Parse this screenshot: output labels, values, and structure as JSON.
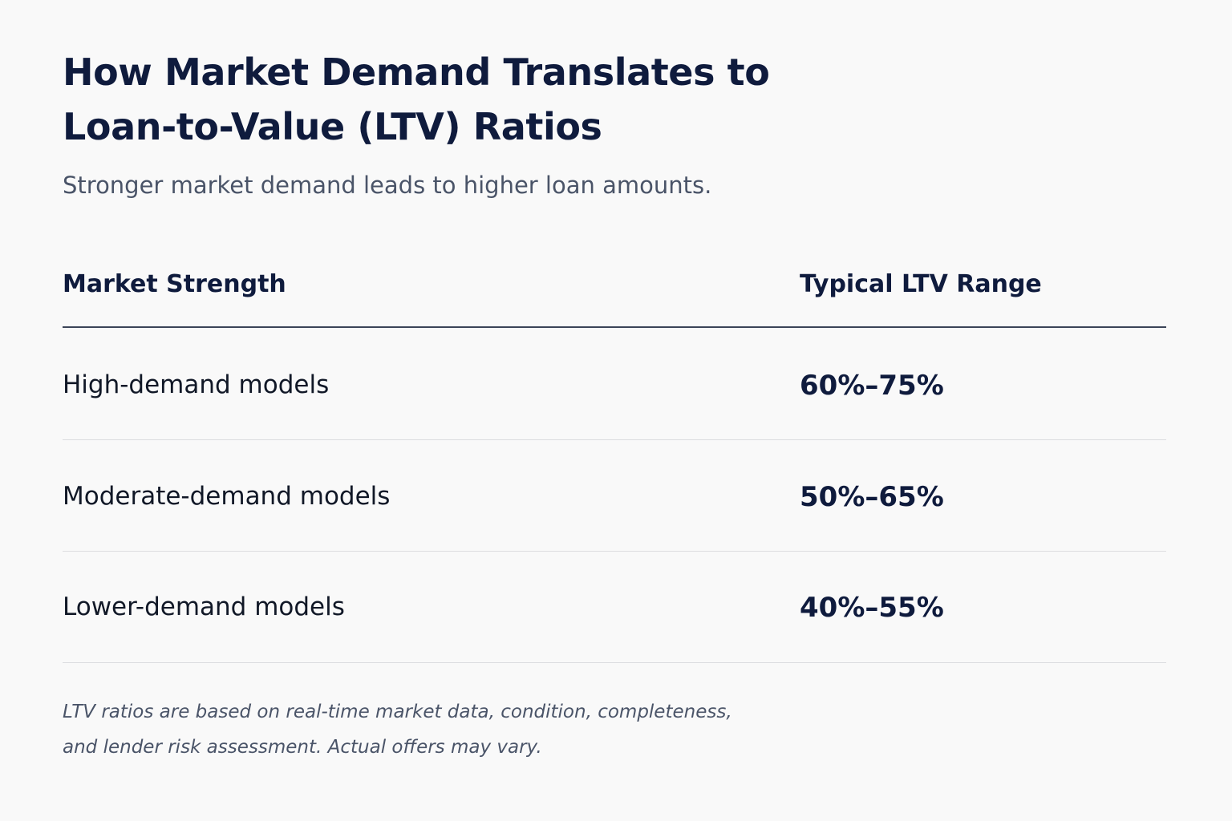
{
  "title": "How Market Demand Translates to Loan-to-Value (LTV) Ratios",
  "subtitle": "Stronger market demand leads to higher loan amounts.",
  "table": {
    "columns": [
      "Market Strength",
      "Typical LTV Range"
    ],
    "rows": [
      {
        "market_strength": "High-demand models",
        "ltv_range": "60%–75%"
      },
      {
        "market_strength": "Moderate-demand models",
        "ltv_range": "50%–65%"
      },
      {
        "market_strength": "Lower-demand models",
        "ltv_range": "40%–55%"
      }
    ]
  },
  "footnote": "LTV ratios are based on real-time market data, condition, completeness, and lender risk assessment. Actual offers may vary.",
  "colors": {
    "background": "#f9f9f9",
    "heading_text": "#0f1b3d",
    "muted_text": "#4a5468",
    "header_rule": "#3b4458",
    "row_rule": "#dcdde0"
  }
}
